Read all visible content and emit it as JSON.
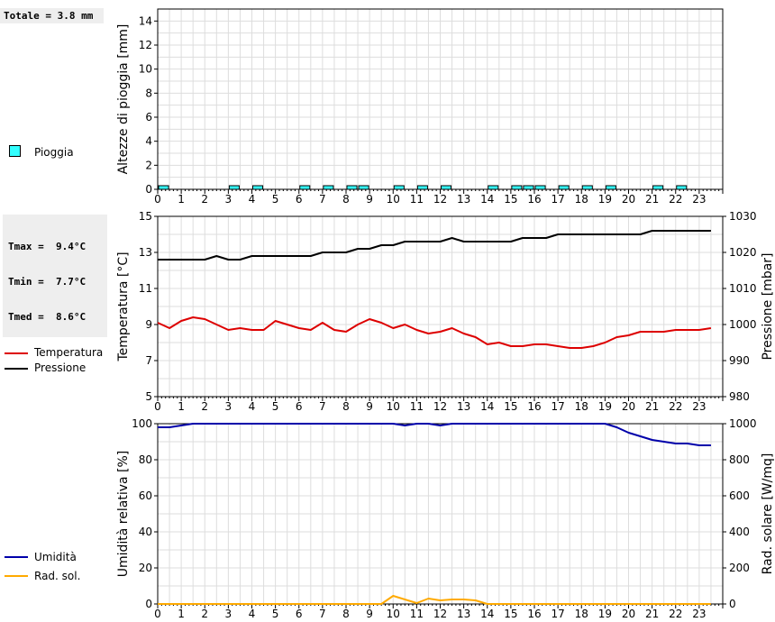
{
  "stats": {
    "rain_total": "Totale = 3.8 mm",
    "tmax": "Tmax =  9.4°C",
    "tmin": "Tmin =  7.7°C",
    "tmed": "Tmed =  8.6°C"
  },
  "legend": {
    "rain": "Pioggia",
    "temperature": "Temperatura",
    "pressure": "Pressione",
    "humidity": "Umidità",
    "solar": "Rad. sol."
  },
  "colors": {
    "rain": "#33ffff",
    "temperature": "#dd0000",
    "pressure": "#000000",
    "humidity": "#0000aa",
    "solar": "#ffaa00",
    "grid": "#dddddd"
  },
  "chart_data": [
    {
      "type": "bar",
      "name": "rain",
      "ylabel": "Altezze di pioggia [mm]",
      "ylim": [
        0,
        15
      ],
      "yticks": [
        0,
        2,
        4,
        6,
        8,
        10,
        12,
        14
      ],
      "xlim": [
        0,
        24
      ],
      "xticks": [
        "0",
        "1",
        "2",
        "3",
        "4",
        "5",
        "6",
        "7",
        "8",
        "9",
        "10",
        "11",
        "12",
        "13",
        "14",
        "15",
        "16",
        "17",
        "18",
        "19",
        "20",
        "21",
        "22",
        "23"
      ],
      "grid": true,
      "bar_width": 0.5,
      "x": [
        0,
        3,
        4,
        6,
        7,
        8,
        8.5,
        10,
        11,
        12,
        14,
        15,
        15.5,
        16,
        17,
        18,
        19,
        21,
        22
      ],
      "values": [
        0.2,
        0.2,
        0.2,
        0.2,
        0.2,
        0.2,
        0.2,
        0.2,
        0.2,
        0.2,
        0.2,
        0.2,
        0.2,
        0.2,
        0.2,
        0.2,
        0.2,
        0.2,
        0.2
      ]
    },
    {
      "type": "line",
      "name": "temp-pressure",
      "ylabel": "Temperatura [°C]",
      "ylabel_right": "Pressione [mbar]",
      "ylim": [
        5,
        15
      ],
      "yticks": [
        5,
        7,
        9,
        11,
        13,
        15
      ],
      "ylim_right": [
        980,
        1030
      ],
      "yticks_right": [
        980,
        990,
        1000,
        1010,
        1020,
        1030
      ],
      "xlim": [
        0,
        24
      ],
      "xticks": [
        "0",
        "1",
        "2",
        "3",
        "4",
        "5",
        "6",
        "7",
        "8",
        "9",
        "10",
        "11",
        "12",
        "13",
        "14",
        "15",
        "16",
        "17",
        "18",
        "19",
        "20",
        "21",
        "22",
        "23"
      ],
      "grid": true,
      "series": [
        {
          "name": "Temperatura",
          "axis": "left",
          "x": [
            0,
            0.5,
            1,
            1.5,
            2,
            2.5,
            3,
            3.5,
            4,
            4.5,
            5,
            5.5,
            6,
            6.5,
            7,
            7.5,
            8,
            8.5,
            9,
            9.5,
            10,
            10.5,
            11,
            11.5,
            12,
            12.5,
            13,
            13.5,
            14,
            14.5,
            15,
            15.5,
            16,
            16.5,
            17,
            17.5,
            18,
            18.5,
            19,
            19.5,
            20,
            20.5,
            21,
            21.5,
            22,
            22.5,
            23,
            23.5
          ],
          "values": [
            9.1,
            8.8,
            9.2,
            9.4,
            9.3,
            9.0,
            8.7,
            8.8,
            8.7,
            8.7,
            9.2,
            9.0,
            8.8,
            8.7,
            9.1,
            8.7,
            8.6,
            9.0,
            9.3,
            9.1,
            8.8,
            9.0,
            8.7,
            8.5,
            8.6,
            8.8,
            8.5,
            8.3,
            7.9,
            8.0,
            7.8,
            7.8,
            7.9,
            7.9,
            7.8,
            7.7,
            7.7,
            7.8,
            8.0,
            8.3,
            8.4,
            8.6,
            8.6,
            8.6,
            8.7,
            8.7,
            8.7,
            8.8
          ]
        },
        {
          "name": "Pressione",
          "axis": "right",
          "x": [
            0,
            0.5,
            1,
            1.5,
            2,
            2.5,
            3,
            3.5,
            4,
            4.5,
            5,
            5.5,
            6,
            6.5,
            7,
            7.5,
            8,
            8.5,
            9,
            9.5,
            10,
            10.5,
            11,
            11.5,
            12,
            12.5,
            13,
            13.5,
            14,
            14.5,
            15,
            15.5,
            16,
            16.5,
            17,
            17.5,
            18,
            18.5,
            19,
            19.5,
            20,
            20.5,
            21,
            21.5,
            22,
            22.5,
            23,
            23.5
          ],
          "values": [
            1018,
            1018,
            1018,
            1018,
            1018,
            1019,
            1018,
            1018,
            1019,
            1019,
            1019,
            1019,
            1019,
            1019,
            1020,
            1020,
            1020,
            1021,
            1021,
            1022,
            1022,
            1023,
            1023,
            1023,
            1023,
            1024,
            1023,
            1023,
            1023,
            1023,
            1023,
            1024,
            1024,
            1024,
            1025,
            1025,
            1025,
            1025,
            1025,
            1025,
            1025,
            1025,
            1026,
            1026,
            1026,
            1026,
            1026,
            1026
          ]
        }
      ]
    },
    {
      "type": "line",
      "name": "humidity-solar",
      "ylabel": "Umidità relativa [%]",
      "ylabel_right": "Rad. solare [W/mq]",
      "ylim": [
        0,
        100
      ],
      "yticks": [
        0,
        20,
        40,
        60,
        80,
        100
      ],
      "ylim_right": [
        0,
        1000
      ],
      "yticks_right": [
        0,
        200,
        400,
        600,
        800,
        1000
      ],
      "xlim": [
        0,
        24
      ],
      "xticks": [
        "0",
        "1",
        "2",
        "3",
        "4",
        "5",
        "6",
        "7",
        "8",
        "9",
        "10",
        "11",
        "12",
        "13",
        "14",
        "15",
        "16",
        "17",
        "18",
        "19",
        "20",
        "21",
        "22",
        "23"
      ],
      "grid": true,
      "series": [
        {
          "name": "Umidità",
          "axis": "left",
          "x": [
            0,
            0.5,
            1,
            1.5,
            2,
            3,
            4,
            5,
            6,
            7,
            8,
            9,
            10,
            10.5,
            11,
            11.5,
            12,
            12.5,
            13,
            14,
            15,
            16,
            17,
            18,
            18.5,
            19,
            19.5,
            20,
            20.5,
            21,
            21.5,
            22,
            22.5,
            23,
            23.5
          ],
          "values": [
            98,
            98,
            99,
            100,
            100,
            100,
            100,
            100,
            100,
            100,
            100,
            100,
            100,
            99,
            100,
            100,
            99,
            100,
            100,
            100,
            100,
            100,
            100,
            100,
            100,
            100,
            98,
            95,
            93,
            91,
            90,
            89,
            89,
            88,
            88
          ]
        },
        {
          "name": "Rad. sol.",
          "axis": "right",
          "x": [
            0,
            1,
            2,
            3,
            4,
            5,
            6,
            7,
            8,
            9,
            9.5,
            10,
            10.5,
            11,
            11.5,
            12,
            12.5,
            13,
            13.5,
            14,
            15,
            16,
            17,
            18,
            19,
            20,
            21,
            22,
            23,
            23.5
          ],
          "values": [
            0,
            0,
            0,
            0,
            0,
            0,
            0,
            0,
            0,
            0,
            0,
            45,
            25,
            5,
            30,
            20,
            25,
            25,
            20,
            0,
            0,
            0,
            0,
            0,
            0,
            0,
            0,
            0,
            0,
            0
          ]
        }
      ]
    }
  ]
}
